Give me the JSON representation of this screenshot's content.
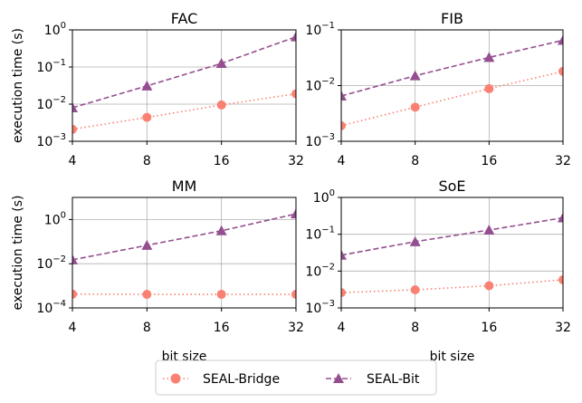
{
  "chart_data": [
    {
      "type": "line",
      "title": "FAC",
      "xlabel": "",
      "ylabel": "execution time (s)",
      "x": [
        4,
        8,
        16,
        32
      ],
      "xscale": "log2",
      "yscale": "log",
      "ylim": [
        0.001,
        1
      ],
      "xticklabels": [
        "4",
        "8",
        "16",
        "32"
      ],
      "yticks": [
        0.001,
        0.01,
        0.1,
        1
      ],
      "yticklabels": [
        {
          "b": "10",
          "e": "−3"
        },
        {
          "b": "10",
          "e": "−2"
        },
        {
          "b": "10",
          "e": "−1"
        },
        {
          "b": "10",
          "e": "0"
        }
      ],
      "grid": true,
      "series": [
        {
          "name": "SEAL-Bridge",
          "values": [
            0.0021,
            0.0044,
            0.0095,
            0.019
          ]
        },
        {
          "name": "SEAL-Bit",
          "values": [
            0.008,
            0.031,
            0.125,
            0.65
          ]
        }
      ]
    },
    {
      "type": "line",
      "title": "FIB",
      "xlabel": "",
      "ylabel": "",
      "x": [
        4,
        8,
        16,
        32
      ],
      "xscale": "log2",
      "yscale": "log",
      "ylim": [
        0.001,
        0.1
      ],
      "xticklabels": [
        "4",
        "8",
        "16",
        "32"
      ],
      "yticks": [
        0.001,
        0.01,
        0.1
      ],
      "yticklabels": [
        {
          "b": "10",
          "e": "−3"
        },
        {
          "b": "10",
          "e": "−2"
        },
        {
          "b": "10",
          "e": "−1"
        }
      ],
      "grid": true,
      "series": [
        {
          "name": "SEAL-Bridge",
          "values": [
            0.0019,
            0.0041,
            0.0088,
            0.018
          ]
        },
        {
          "name": "SEAL-Bit",
          "values": [
            0.0065,
            0.015,
            0.032,
            0.065
          ]
        }
      ]
    },
    {
      "type": "line",
      "title": "MM",
      "xlabel": "bit size",
      "ylabel": "execution time (s)",
      "x": [
        4,
        8,
        16,
        32
      ],
      "xscale": "log2",
      "yscale": "log",
      "ylim": [
        0.0001,
        10
      ],
      "xticklabels": [
        "4",
        "8",
        "16",
        "32"
      ],
      "yticks": [
        0.0001,
        0.01,
        1
      ],
      "yticklabels": [
        {
          "b": "10",
          "e": "−4"
        },
        {
          "b": "10",
          "e": "−2"
        },
        {
          "b": "10",
          "e": "0"
        }
      ],
      "grid": true,
      "series": [
        {
          "name": "SEAL-Bridge",
          "values": [
            0.00042,
            0.00041,
            0.00041,
            0.00041
          ]
        },
        {
          "name": "SEAL-Bit",
          "values": [
            0.015,
            0.068,
            0.31,
            1.8
          ]
        }
      ]
    },
    {
      "type": "line",
      "title": "SoE",
      "xlabel": "bit size",
      "ylabel": "",
      "x": [
        4,
        8,
        16,
        32
      ],
      "xscale": "log2",
      "yscale": "log",
      "ylim": [
        0.001,
        1
      ],
      "xticklabels": [
        "4",
        "8",
        "16",
        "32"
      ],
      "yticks": [
        0.001,
        0.01,
        0.1,
        1
      ],
      "yticklabels": [
        {
          "b": "10",
          "e": "−3"
        },
        {
          "b": "10",
          "e": "−2"
        },
        {
          "b": "10",
          "e": "−1"
        },
        {
          "b": "10",
          "e": "0"
        }
      ],
      "grid": true,
      "series": [
        {
          "name": "SEAL-Bridge",
          "values": [
            0.0026,
            0.0031,
            0.004,
            0.0058
          ]
        },
        {
          "name": "SEAL-Bit",
          "values": [
            0.027,
            0.063,
            0.13,
            0.28
          ]
        }
      ]
    }
  ],
  "legend": {
    "placement": "bottom-center",
    "items": [
      {
        "name": "SEAL-Bridge",
        "color": "#fa8072",
        "marker": "circle",
        "linestyle": "dotted"
      },
      {
        "name": "SEAL-Bit",
        "color": "#954f91",
        "marker": "triangle",
        "linestyle": "dashed"
      }
    ]
  },
  "colors": {
    "bridge": "#fa8072",
    "bit": "#954f91",
    "grid": "#b0b0b0",
    "axis": "#000000"
  }
}
